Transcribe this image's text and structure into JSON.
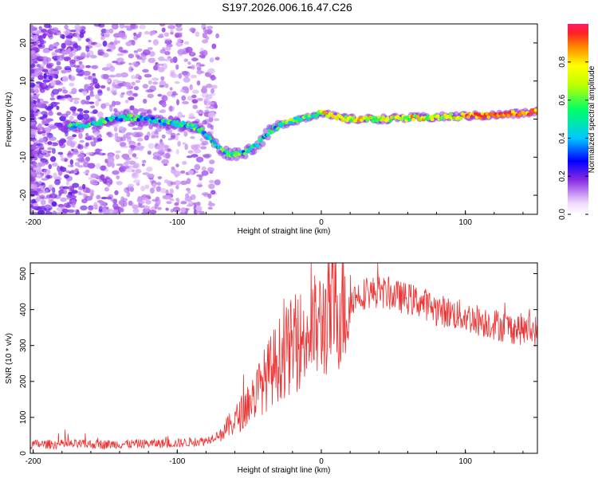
{
  "title": "S197.2026.006.16.47.C26",
  "chart_data": [
    {
      "type": "heatmap",
      "xlabel": "Height of straight line (km)",
      "ylabel": "Frequency (Hz)",
      "xlim": [
        -202,
        150
      ],
      "ylim": [
        -25,
        25
      ],
      "xticks": [
        -200,
        -100,
        0,
        100
      ],
      "yticks": [
        -20,
        -10,
        0,
        10,
        20
      ],
      "ridge": [
        [
          -175,
          -2
        ],
        [
          -165,
          -1.5
        ],
        [
          -155,
          -1
        ],
        [
          -145,
          0
        ],
        [
          -135,
          0.5
        ],
        [
          -125,
          0
        ],
        [
          -115,
          -0.5
        ],
        [
          -105,
          -1
        ],
        [
          -95,
          -1.5
        ],
        [
          -85,
          -2.5
        ],
        [
          -80,
          -4
        ],
        [
          -75,
          -6
        ],
        [
          -70,
          -8
        ],
        [
          -65,
          -9
        ],
        [
          -60,
          -9
        ],
        [
          -55,
          -9
        ],
        [
          -50,
          -8
        ],
        [
          -45,
          -7
        ],
        [
          -40,
          -5
        ],
        [
          -35,
          -3
        ],
        [
          -30,
          -2
        ],
        [
          -25,
          -1
        ],
        [
          -20,
          -0.5
        ],
        [
          -15,
          0
        ],
        [
          -10,
          0.5
        ],
        [
          -5,
          1
        ],
        [
          0,
          2
        ],
        [
          5,
          1
        ],
        [
          10,
          0.5
        ],
        [
          20,
          0
        ],
        [
          40,
          0
        ],
        [
          60,
          0.3
        ],
        [
          80,
          0.5
        ],
        [
          100,
          0.8
        ],
        [
          120,
          1
        ],
        [
          140,
          1.5
        ],
        [
          150,
          2
        ]
      ],
      "colorbar": {
        "label": "Normalized spectral amplitude",
        "ticks": [
          0.0,
          0.2,
          0.4,
          0.6,
          0.8
        ],
        "tick_labels": [
          "0.0",
          "0.2",
          "0.4",
          "0.6",
          "0.8"
        ],
        "range": [
          0,
          1
        ]
      }
    },
    {
      "type": "line",
      "xlabel": "Height of straight line (km)",
      "ylabel": "SNR (10 * v/v)",
      "xlim": [
        -202,
        150
      ],
      "ylim": [
        0,
        530
      ],
      "xticks": [
        -200,
        -100,
        0,
        100
      ],
      "yticks": [
        0,
        100,
        200,
        300,
        400,
        500
      ],
      "color": "#ee3333",
      "envelope": [
        [
          -202,
          25
        ],
        [
          -150,
          25
        ],
        [
          -100,
          28
        ],
        [
          -80,
          35
        ],
        [
          -70,
          55
        ],
        [
          -60,
          90
        ],
        [
          -50,
          140
        ],
        [
          -40,
          200
        ],
        [
          -30,
          260
        ],
        [
          -20,
          300
        ],
        [
          -10,
          330
        ],
        [
          0,
          360
        ],
        [
          10,
          400
        ],
        [
          20,
          430
        ],
        [
          30,
          445
        ],
        [
          40,
          450
        ],
        [
          50,
          440
        ],
        [
          60,
          430
        ],
        [
          70,
          420
        ],
        [
          80,
          400
        ],
        [
          90,
          390
        ],
        [
          100,
          380
        ],
        [
          110,
          370
        ],
        [
          120,
          360
        ],
        [
          130,
          350
        ],
        [
          140,
          345
        ],
        [
          150,
          340
        ]
      ]
    }
  ]
}
